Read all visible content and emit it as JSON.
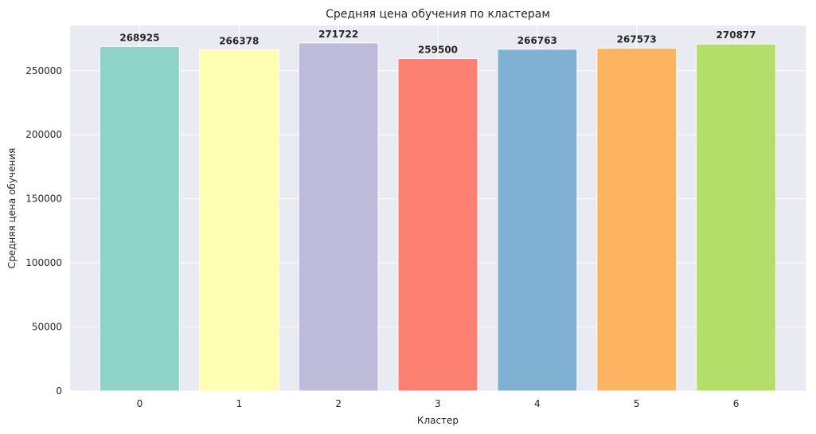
{
  "chart_data": {
    "type": "bar",
    "title": "Средняя цена обучения по кластерам",
    "xlabel": "Кластер",
    "ylabel": "Средняя цена обучения",
    "categories": [
      "0",
      "1",
      "2",
      "3",
      "4",
      "5",
      "6"
    ],
    "values": [
      268925,
      266378,
      271722,
      259500,
      266763,
      267573,
      270877
    ],
    "value_labels": [
      "268925",
      "266378",
      "271722",
      "259500",
      "266763",
      "267573",
      "270877"
    ],
    "colors": [
      "#8dd3c7",
      "#ffffb3",
      "#bebada",
      "#fb8072",
      "#80b1d3",
      "#fdb462",
      "#b3de69"
    ],
    "yticks": [
      0,
      50000,
      100000,
      150000,
      200000,
      250000
    ],
    "ytick_labels": [
      "0",
      "50000",
      "100000",
      "150000",
      "200000",
      "250000"
    ],
    "ylim": [
      0,
      285308
    ],
    "grid": true,
    "background": "#eaeaf2"
  }
}
